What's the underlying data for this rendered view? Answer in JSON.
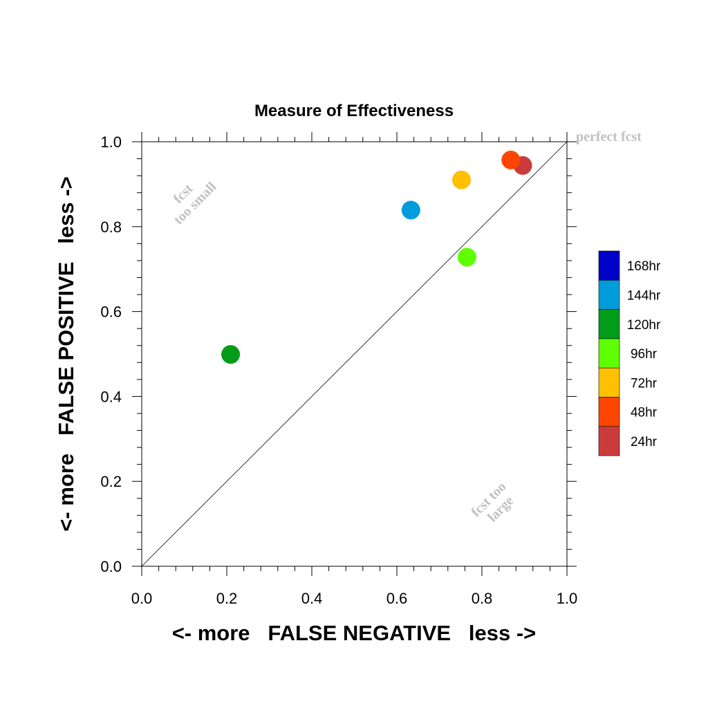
{
  "chart_data": {
    "type": "scatter",
    "title": "Measure of Effectiveness",
    "xlabel": "<- more   FALSE NEGATIVE   less ->",
    "ylabel": "<- more   FALSE POSITIVE   less ->",
    "xlim": [
      0.0,
      1.0
    ],
    "ylim": [
      0.0,
      1.0
    ],
    "x_ticks": [
      "0.0",
      "0.2",
      "0.4",
      "0.6",
      "0.8",
      "1.0"
    ],
    "y_ticks": [
      "0.0",
      "0.2",
      "0.4",
      "0.6",
      "0.8",
      "1.0"
    ],
    "grid": false,
    "reference_line": {
      "from": [
        0.0,
        0.0
      ],
      "to": [
        1.0,
        1.0
      ]
    },
    "annotations": {
      "perfect": "perfect fcst",
      "too_small": [
        "fcst",
        "too small"
      ],
      "too_large": [
        "fcst too",
        "large"
      ]
    },
    "legend_position": "right",
    "points": [
      {
        "name": "24hr",
        "x": 0.896,
        "y": 0.944,
        "color": "#cc3b3b"
      },
      {
        "name": "48hr",
        "x": 0.868,
        "y": 0.957,
        "color": "#ff4500"
      },
      {
        "name": "72hr",
        "x": 0.752,
        "y": 0.91,
        "color": "#ffc000"
      },
      {
        "name": "96hr",
        "x": 0.765,
        "y": 0.728,
        "color": "#5fff00"
      },
      {
        "name": "120hr",
        "x": 0.209,
        "y": 0.499,
        "color": "#009c1a"
      },
      {
        "name": "144hr",
        "x": 0.633,
        "y": 0.839,
        "color": "#009cdc"
      },
      {
        "name": "168hr",
        "x": null,
        "y": null,
        "color": "#0000c8"
      }
    ],
    "legend": [
      {
        "label": "168hr",
        "color": "#0000c8"
      },
      {
        "label": "144hr",
        "color": "#009cdc"
      },
      {
        "label": "120hr",
        "color": "#009c1a"
      },
      {
        "label": "96hr",
        "color": "#5fff00"
      },
      {
        "label": "72hr",
        "color": "#ffc000"
      },
      {
        "label": "48hr",
        "color": "#ff4500"
      },
      {
        "label": "24hr",
        "color": "#cc3b3b"
      }
    ]
  }
}
